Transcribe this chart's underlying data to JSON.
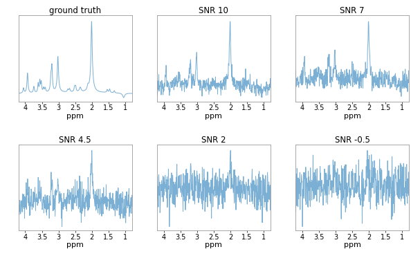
{
  "titles": [
    "ground truth",
    "SNR 10",
    "SNR 7",
    "SNR 4.5",
    "SNR 2",
    "SNR -0.5"
  ],
  "snr_values": [
    null,
    10,
    7,
    4.5,
    2,
    -0.5
  ],
  "xlim": [
    4.2,
    0.8
  ],
  "xticks": [
    4,
    3.5,
    3,
    2.5,
    2,
    1.5,
    1
  ],
  "xlabel": "ppm",
  "line_color": "#7bafd4",
  "line_width": 0.7,
  "bg_color": "#ffffff",
  "fig_bg_color": "#ffffff",
  "title_fontsize": 8.5,
  "tick_fontsize": 7,
  "label_fontsize": 8,
  "seed": 12345,
  "n_points": 512,
  "noise_scale": 0.055
}
